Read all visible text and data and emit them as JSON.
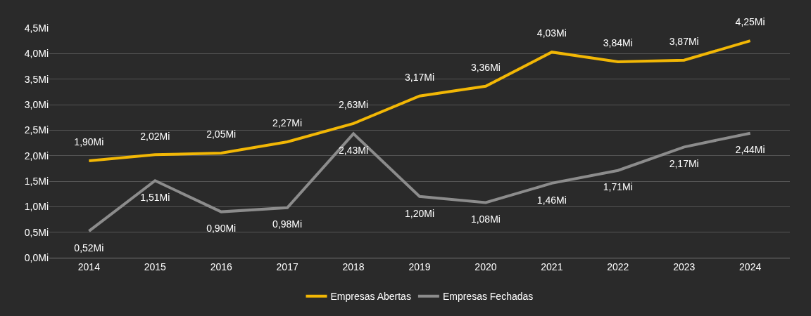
{
  "chart_data": {
    "type": "line",
    "categories": [
      "2014",
      "2015",
      "2016",
      "2017",
      "2018",
      "2019",
      "2020",
      "2021",
      "2022",
      "2023",
      "2024"
    ],
    "series": [
      {
        "name": "Empresas Abertas",
        "color": "#f2b705",
        "values": [
          1.9,
          2.02,
          2.05,
          2.27,
          2.63,
          3.17,
          3.36,
          4.03,
          3.84,
          3.87,
          4.25
        ],
        "value_labels": [
          "1,90Mi",
          "2,02Mi",
          "2,05Mi",
          "2,27Mi",
          "2,63Mi",
          "3,17Mi",
          "3,36Mi",
          "4,03Mi",
          "3,84Mi",
          "3,87Mi",
          "4,25Mi"
        ]
      },
      {
        "name": "Empresas Fechadas",
        "color": "#8c8c8c",
        "values": [
          0.52,
          1.51,
          0.9,
          0.98,
          2.43,
          1.2,
          1.08,
          1.46,
          1.71,
          2.17,
          2.44
        ],
        "value_labels": [
          "0,52Mi",
          "1,51Mi",
          "0,90Mi",
          "0,98Mi",
          "2,43Mi",
          "1,20Mi",
          "1,08Mi",
          "1,46Mi",
          "1,71Mi",
          "2,17Mi",
          "2,44Mi"
        ]
      }
    ],
    "ylim": [
      0,
      4.5
    ],
    "yticks": [
      {
        "value": 0,
        "label": "0,0Mi"
      },
      {
        "value": 0.5,
        "label": "0,5Mi"
      },
      {
        "value": 1,
        "label": "1,0Mi"
      },
      {
        "value": 1.5,
        "label": "1,5Mi"
      },
      {
        "value": 2,
        "label": "2,0Mi"
      },
      {
        "value": 2.5,
        "label": "2,5Mi"
      },
      {
        "value": 3,
        "label": "3,0Mi"
      },
      {
        "value": 3.5,
        "label": "3,5Mi"
      },
      {
        "value": 4,
        "label": "4,0Mi"
      },
      {
        "value": 4.5,
        "label": "4,5Mi"
      }
    ],
    "grid": "y",
    "legend": "bottom",
    "marker": "none",
    "line_style": "solid"
  }
}
